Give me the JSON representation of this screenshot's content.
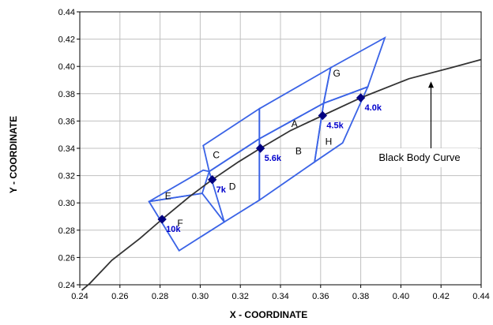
{
  "chart_data": {
    "type": "scatter",
    "xlabel": "X - COORDINATE",
    "ylabel": "Y - COORDINATE",
    "xlim": [
      0.24,
      0.44
    ],
    "ylim": [
      0.24,
      0.44
    ],
    "x_ticks": [
      "0.24",
      "0.26",
      "0.28",
      "0.30",
      "0.32",
      "0.34",
      "0.36",
      "0.38",
      "0.40",
      "0.42",
      "0.44"
    ],
    "y_ticks": [
      "0.24",
      "0.26",
      "0.28",
      "0.30",
      "0.32",
      "0.34",
      "0.36",
      "0.38",
      "0.40",
      "0.42",
      "0.44"
    ],
    "grid": true,
    "colors": {
      "curve": "#333333",
      "regions": "#3a63e6",
      "points": "#000080",
      "point_labels": "#0000cc",
      "grid": "#c0c0c0"
    },
    "black_body_curve": {
      "name": "Black Body Curve",
      "x": [
        0.241,
        0.245,
        0.256,
        0.27,
        0.281,
        0.295,
        0.306,
        0.319,
        0.33,
        0.345,
        0.361,
        0.38,
        0.404,
        0.425,
        0.44
      ],
      "y": [
        0.236,
        0.241,
        0.258,
        0.274,
        0.288,
        0.305,
        0.317,
        0.33,
        0.34,
        0.353,
        0.364,
        0.377,
        0.391,
        0.399,
        0.405
      ]
    },
    "cct_points": [
      {
        "label": "10k",
        "x": 0.281,
        "y": 0.288
      },
      {
        "label": "7k",
        "x": 0.306,
        "y": 0.317
      },
      {
        "label": "5.6k",
        "x": 0.33,
        "y": 0.34
      },
      {
        "label": "4.5k",
        "x": 0.361,
        "y": 0.364
      },
      {
        "label": "4.0k",
        "x": 0.38,
        "y": 0.377
      }
    ],
    "regions": [
      {
        "label": "A",
        "label_pos": [
          0.347,
          0.358
        ],
        "polygon": [
          [
            0.3295,
            0.369
          ],
          [
            0.365,
            0.399
          ],
          [
            0.3615,
            0.373
          ],
          [
            0.3295,
            0.347
          ]
        ]
      },
      {
        "label": "B",
        "label_pos": [
          0.349,
          0.338
        ],
        "polygon": [
          [
            0.3295,
            0.347
          ],
          [
            0.3615,
            0.373
          ],
          [
            0.357,
            0.33
          ],
          [
            0.3295,
            0.302
          ]
        ]
      },
      {
        "label": "C",
        "label_pos": [
          0.308,
          0.335
        ],
        "polygon": [
          [
            0.3015,
            0.342
          ],
          [
            0.3295,
            0.369
          ],
          [
            0.3295,
            0.347
          ],
          [
            0.3045,
            0.323
          ]
        ]
      },
      {
        "label": "D",
        "label_pos": [
          0.316,
          0.312
        ],
        "polygon": [
          [
            0.3045,
            0.323
          ],
          [
            0.3295,
            0.347
          ],
          [
            0.3295,
            0.302
          ],
          [
            0.312,
            0.286
          ]
        ]
      },
      {
        "label": "E",
        "label_pos": [
          0.284,
          0.305
        ],
        "polygon": [
          [
            0.2745,
            0.301
          ],
          [
            0.3015,
            0.324
          ],
          [
            0.3045,
            0.323
          ],
          [
            0.301,
            0.307
          ]
        ]
      },
      {
        "label": "F",
        "label_pos": [
          0.29,
          0.285
        ],
        "polygon": [
          [
            0.301,
            0.307
          ],
          [
            0.312,
            0.286
          ],
          [
            0.2895,
            0.265
          ],
          [
            0.2745,
            0.301
          ]
        ]
      },
      {
        "label": "G",
        "label_pos": [
          0.368,
          0.395
        ],
        "polygon": [
          [
            0.365,
            0.399
          ],
          [
            0.392,
            0.421
          ],
          [
            0.3835,
            0.385
          ],
          [
            0.3615,
            0.373
          ]
        ]
      },
      {
        "label": "H",
        "label_pos": [
          0.364,
          0.345
        ],
        "polygon": [
          [
            0.3615,
            0.373
          ],
          [
            0.3835,
            0.385
          ],
          [
            0.371,
            0.344
          ],
          [
            0.357,
            0.33
          ]
        ]
      }
    ],
    "annotation": {
      "text": "Black Body Curve",
      "arrow_x": 0.415,
      "arrow_tip_y": 0.389,
      "arrow_tail_y": 0.34
    }
  }
}
